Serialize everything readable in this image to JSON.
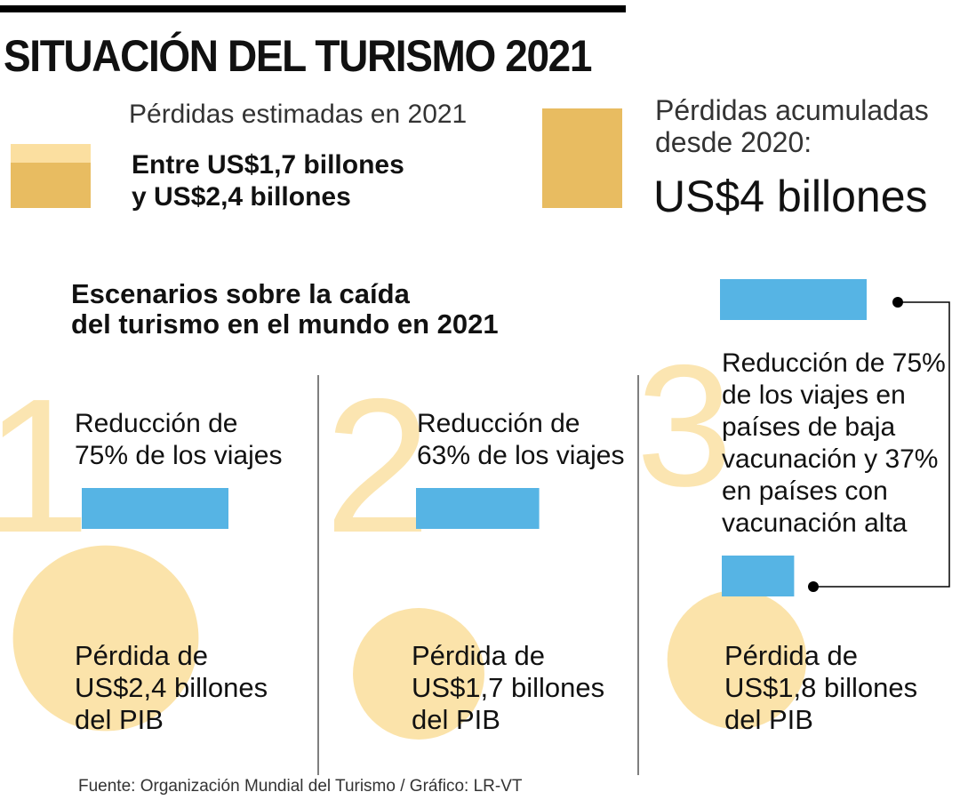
{
  "title": "SITUACIÓN DEL TURISMO 2021",
  "estimated": {
    "label": "Pérdidas estimadas en 2021",
    "range_line1": "Entre US$1,7 billones",
    "range_line2": "y US$2,4 billones",
    "low": 1.7,
    "high": 2.4
  },
  "accumulated": {
    "label_line1": "Pérdidas acumuladas",
    "label_line2": "desde 2020:",
    "value_text": "US$4 billones",
    "value": 4
  },
  "scenarios_title": {
    "line1": "Escenarios sobre la caída",
    "line2": "del turismo en el mundo en 2021"
  },
  "colors": {
    "gold": "#E8BC61",
    "gold_light": "#FBDFA0",
    "numeral": "#FBE5B1",
    "circle": "#FBE3AA",
    "blue": "#56B4E4",
    "divider": "#555555",
    "text": "#111111"
  },
  "chart_data": {
    "type": "bar",
    "title": "Escenarios sobre la caída del turismo en el mundo en 2021",
    "categories": [
      "1",
      "2",
      "3"
    ],
    "series": [
      {
        "name": "Reducción de los viajes (%)",
        "values": [
          75,
          63,
          null
        ],
        "split_values": {
          "3": [
            75,
            37
          ]
        }
      },
      {
        "name": "Pérdida del PIB (US$ billones)",
        "values": [
          2.4,
          1.7,
          1.8
        ]
      }
    ],
    "scenarios": [
      {
        "number": "1",
        "text_lines": [
          "Reducción de",
          "75% de los viajes"
        ],
        "reductions": [
          75
        ],
        "loss_value": 2.4,
        "loss_lines": [
          "Pérdida de",
          "US$2,4 billones",
          "del PIB"
        ]
      },
      {
        "number": "2",
        "text_lines": [
          "Reducción de",
          "63% de los viajes"
        ],
        "reductions": [
          63
        ],
        "loss_value": 1.7,
        "loss_lines": [
          "Pérdida de",
          "US$1,7 billones",
          "del PIB"
        ]
      },
      {
        "number": "3",
        "text_lines": [
          "Reducción de 75%",
          "de los viajes en",
          "países de baja",
          "vacunación y 37%",
          "en países con",
          "vacunación alta"
        ],
        "reductions": [
          75,
          37
        ],
        "loss_value": 1.8,
        "loss_lines": [
          "Pérdida de",
          "US$1,8 billones",
          "del PIB"
        ]
      }
    ]
  },
  "source": "Fuente: Organización Mundial del Turismo  / Gráfico: LR-VT"
}
